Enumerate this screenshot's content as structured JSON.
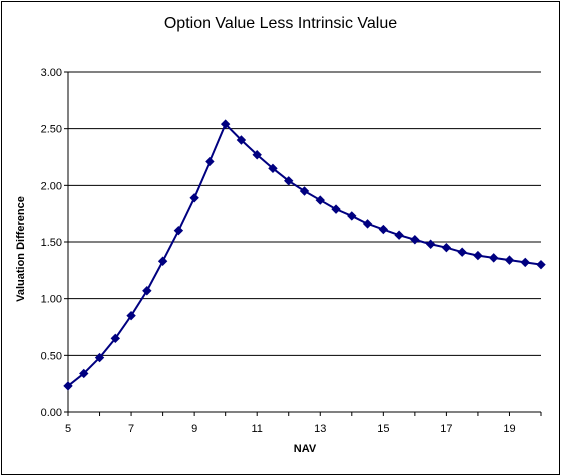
{
  "chart_data": {
    "type": "line",
    "title": "Option Value Less Intrinsic Value",
    "xlabel": "NAV",
    "ylabel": "Valuation Difference",
    "xlim": [
      5,
      20
    ],
    "ylim": [
      0,
      3
    ],
    "x_ticks": [
      "5",
      "7",
      "9",
      "11",
      "13",
      "15",
      "17",
      "19"
    ],
    "y_ticks": [
      "0.00",
      "0.50",
      "1.00",
      "1.50",
      "2.00",
      "2.50",
      "3.00"
    ],
    "grid": "horizontal",
    "legend": "none",
    "series": [
      {
        "color": "#000080",
        "marker": "diamond",
        "x": [
          5,
          5.5,
          6,
          6.5,
          7,
          7.5,
          8,
          8.5,
          9,
          9.5,
          10,
          10.5,
          11,
          11.5,
          12,
          12.5,
          13,
          13.5,
          14,
          14.5,
          15,
          15.5,
          16,
          16.5,
          17,
          17.5,
          18,
          18.5,
          19,
          19.5,
          20
        ],
        "y": [
          0.23,
          0.34,
          0.48,
          0.65,
          0.85,
          1.07,
          1.33,
          1.6,
          1.89,
          2.21,
          2.54,
          2.4,
          2.27,
          2.15,
          2.04,
          1.95,
          1.87,
          1.79,
          1.73,
          1.66,
          1.61,
          1.56,
          1.52,
          1.48,
          1.45,
          1.41,
          1.38,
          1.36,
          1.34,
          1.32,
          1.3
        ]
      }
    ]
  }
}
